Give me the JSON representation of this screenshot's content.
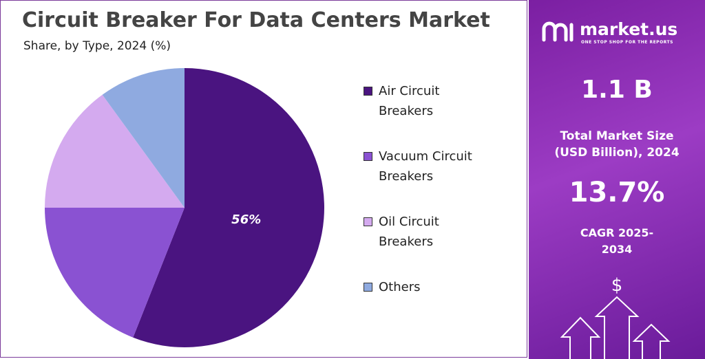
{
  "chart_data": {
    "type": "pie",
    "title": "Circuit Breaker For Data Centers Market",
    "subtitle": "Share, by Type, 2024 (%)",
    "categories": [
      "Air Circuit Breakers",
      "Vacuum Circuit Breakers",
      "Oil Circuit Breakers",
      "Others"
    ],
    "values": [
      56,
      19,
      15,
      10
    ],
    "value_labels": [
      "56%",
      null,
      null,
      null
    ],
    "colors": [
      "#4a1480",
      "#8a52d2",
      "#d4aaef",
      "#8faae0"
    ],
    "legend": "right"
  },
  "panel": {
    "brand": "market.us",
    "tagline": "ONE STOP SHOP FOR THE REPORTS",
    "market_size": "1.1 B",
    "market_size_label": "Total Market Size (USD Billion), 2024",
    "cagr": "13.7%",
    "cagr_label": "CAGR 2025-2034",
    "icon": "$"
  }
}
